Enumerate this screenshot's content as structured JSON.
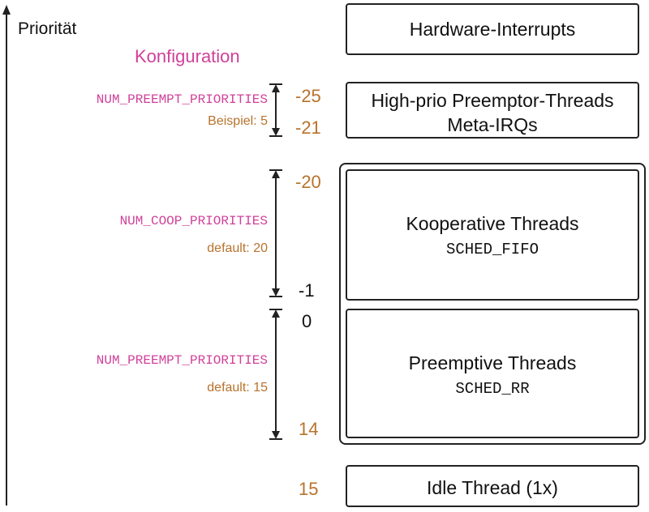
{
  "axis": {
    "label": "Priorität"
  },
  "config_heading": "Konfiguration",
  "config_groups": [
    {
      "name": "NUM_PREEMPT_PRIORITIES",
      "note": "Beispiel: 5",
      "top": "-25",
      "bottom": "-21"
    },
    {
      "name": "NUM_COOP_PRIORITIES",
      "note": "default: 20",
      "top": "-20",
      "bottom": "-1"
    },
    {
      "name": "NUM_PREEMPT_PRIORITIES",
      "note": "default: 15",
      "top": "0",
      "bottom": "14"
    }
  ],
  "idle_priority": "15",
  "boxes": {
    "hardware": {
      "label": "Hardware-Interrupts"
    },
    "meta_irq": {
      "line1": "High-prio Preemptor-Threads",
      "line2": "Meta-IRQs"
    },
    "coop": {
      "title": "Kooperative Threads",
      "policy": "SCHED_FIFO"
    },
    "preempt": {
      "title": "Preemptive Threads",
      "policy": "SCHED_RR"
    },
    "idle": {
      "label": "Idle Thread (1x)"
    }
  },
  "colors": {
    "config_name": "#d0419a",
    "config_note": "#b8722c",
    "line": "#222222"
  }
}
